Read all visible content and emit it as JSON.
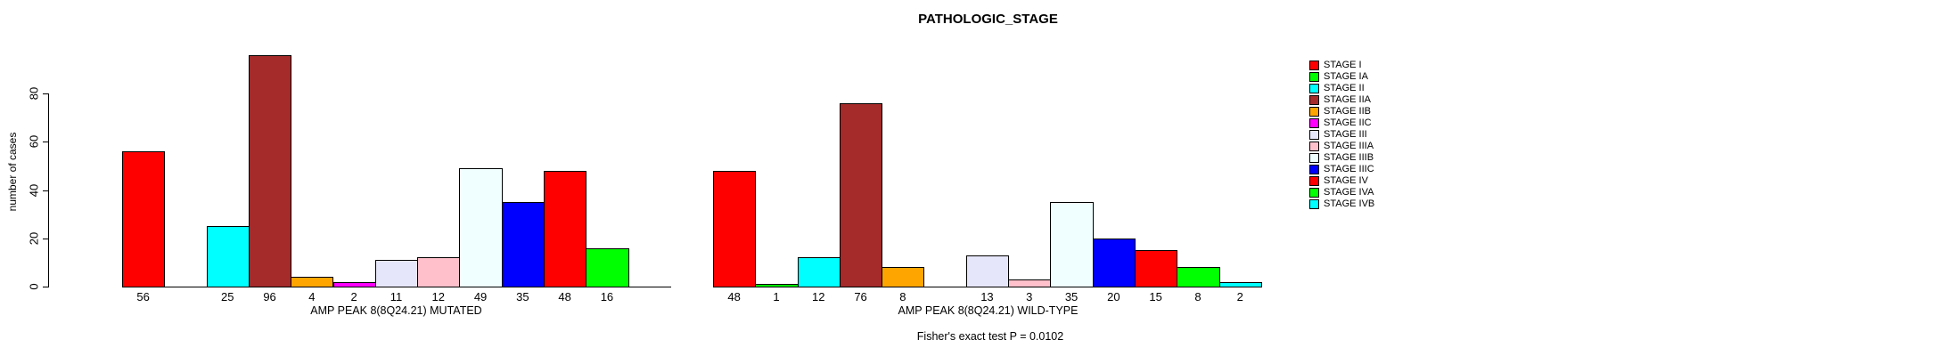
{
  "chart_data": {
    "type": "bar",
    "title": "PATHOLOGIC_STAGE",
    "ylabel": "number of cases",
    "yticks": [
      0,
      20,
      40,
      60,
      80
    ],
    "ylim": [
      0,
      96
    ],
    "grid": false,
    "legend_position": "right",
    "bar_labels": "values shown under each nonzero bar",
    "categories": [
      "STAGE I",
      "STAGE IA",
      "STAGE II",
      "STAGE IIA",
      "STAGE IIB",
      "STAGE IIC",
      "STAGE III",
      "STAGE IIIA",
      "STAGE IIIB",
      "STAGE IIIC",
      "STAGE IV",
      "STAGE IVA",
      "STAGE IVB"
    ],
    "colors": [
      "#FF0000",
      "#00FF00",
      "#00FFFF",
      "#A52A2A",
      "#FFA500",
      "#FF00FF",
      "#E6E6FA",
      "#FFC0CB",
      "#F0FFFF",
      "#0000FF",
      "#FF0000",
      "#00FF00",
      "#00FFFF"
    ],
    "panels": [
      {
        "xlabel": "AMP PEAK  8(8Q24.21) MUTATED",
        "values": [
          56,
          0,
          25,
          96,
          4,
          2,
          11,
          12,
          49,
          35,
          48,
          16,
          0
        ]
      },
      {
        "xlabel": "AMP PEAK  8(8Q24.21) WILD-TYPE",
        "values": [
          48,
          1,
          12,
          76,
          8,
          0,
          13,
          3,
          35,
          20,
          15,
          8,
          2
        ]
      }
    ],
    "footnote": "Fisher's exact test P = 0.0102",
    "axis_color": "#000000",
    "text_color": "#000000",
    "background": "#FFFFFF"
  }
}
